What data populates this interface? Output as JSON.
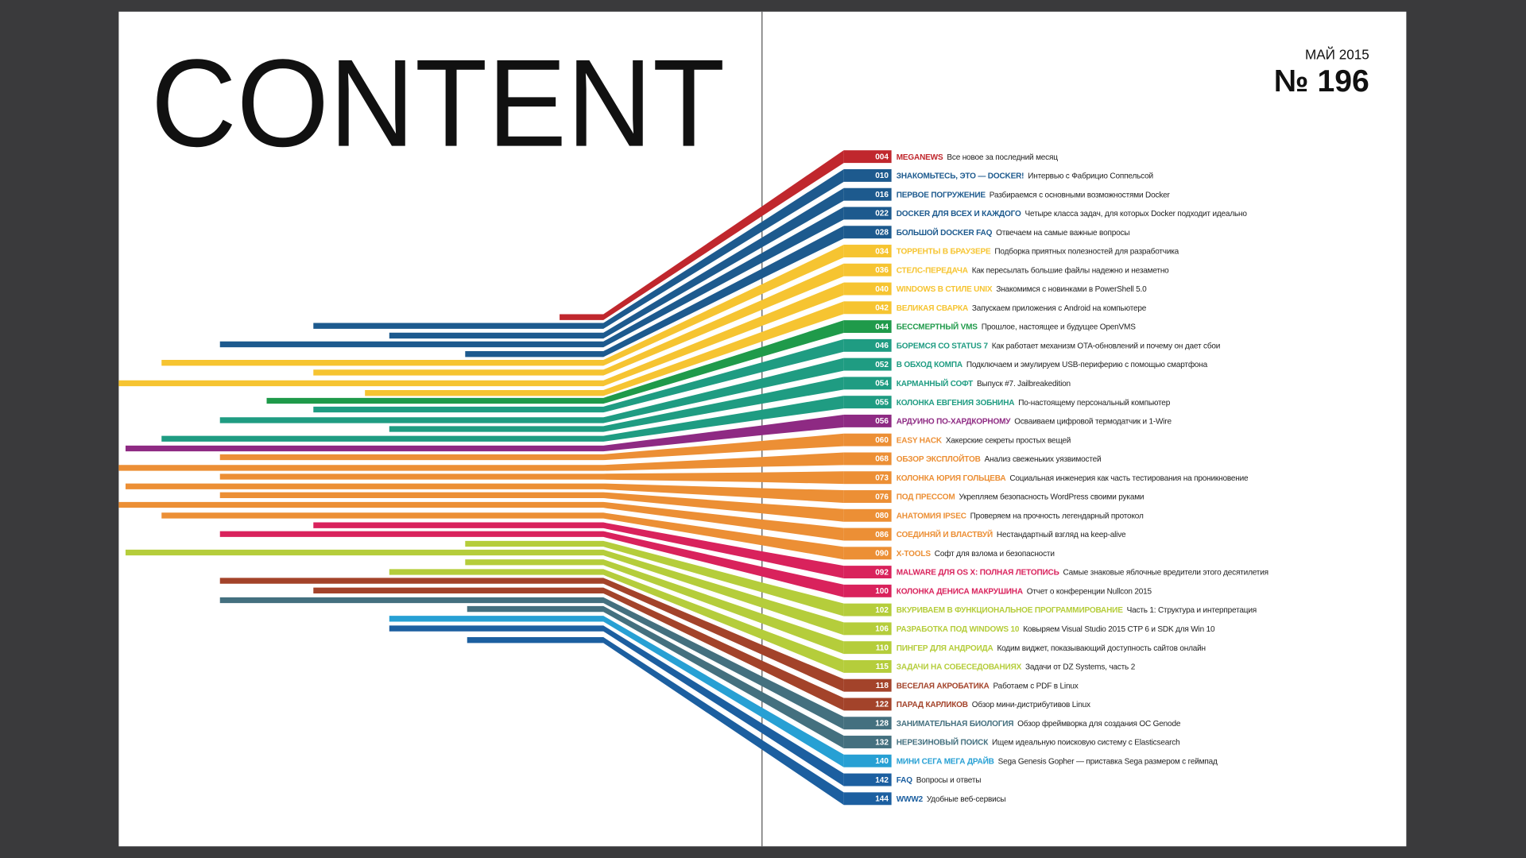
{
  "header": {
    "title": "CONTENT",
    "issue_date": "МАЙ 2015",
    "issue_number": "№ 196"
  },
  "entries": [
    {
      "page": "004",
      "title": "MEGANEWS",
      "description": "Все новое за последний месяц",
      "color": "#c0272d"
    },
    {
      "page": "010",
      "title": "ЗНАКОМЬТЕСЬ, ЭТО — DOCKER!",
      "description": "Интервью с Фабрицио Соппельсой",
      "color": "#1d5a8e"
    },
    {
      "page": "016",
      "title": "ПЕРВОЕ ПОГРУЖЕНИЕ",
      "description": "Разбираемся с основными возможностями Docker",
      "color": "#1d5a8e"
    },
    {
      "page": "022",
      "title": "DOCKER ДЛЯ ВСЕХ И КАЖДОГО",
      "description": "Четыре класса задач, для которых Docker подходит идеально",
      "color": "#1d5a8e"
    },
    {
      "page": "028",
      "title": "БОЛЬШОЙ DOCKER FAQ",
      "description": "Отвечаем на самые важные вопросы",
      "color": "#1d5a8e"
    },
    {
      "page": "034",
      "title": "ТОРРЕНТЫ В БРАУЗЕРЕ",
      "description": "Подборка приятных полезностей для разработчика",
      "color": "#f6c431"
    },
    {
      "page": "036",
      "title": "СТЕЛС-ПЕРЕДАЧА",
      "description": "Как пересылать большие файлы надежно и незаметно",
      "color": "#f6c431"
    },
    {
      "page": "040",
      "title": "WINDOWS В СТИЛЕ UNIX",
      "description": "Знакомимся с новинками в PowerShell 5.0",
      "color": "#f6c431"
    },
    {
      "page": "042",
      "title": "ВЕЛИКАЯ СВАРКА",
      "description": "Запускаем приложения с Android на компьютере",
      "color": "#f6c431"
    },
    {
      "page": "044",
      "title": "БЕССМЕРТНЫЙ VMS",
      "description": "Прошлое, настоящее и будущее OpenVMS",
      "color": "#1f9a4a"
    },
    {
      "page": "046",
      "title": "БОРЕМСЯ СО STATUS 7",
      "description": "Как работает механизм OTA-обновлений и почему он дает сбои",
      "color": "#1f9c82"
    },
    {
      "page": "052",
      "title": "В ОБХОД КОМПА",
      "description": "Подключаем и эмулируем USB-периферию с помощью смартфона",
      "color": "#1f9c82"
    },
    {
      "page": "054",
      "title": "КАРМАННЫЙ СОФТ",
      "description": "Выпуск #7. Jailbreakedition",
      "color": "#1f9c82"
    },
    {
      "page": "055",
      "title": "КОЛОНКА ЕВГЕНИЯ ЗОБНИНА",
      "description": "По-настоящему персональный компьютер",
      "color": "#1f9c82"
    },
    {
      "page": "056",
      "title": "АРДУИНО ПО-ХАРДКОРНОМУ",
      "description": "Осваиваем цифровой термодатчик и 1-Wire",
      "color": "#8e2a83"
    },
    {
      "page": "060",
      "title": "EASY HACK",
      "description": "Хакерские секреты простых вещей",
      "color": "#ec8f35"
    },
    {
      "page": "068",
      "title": "ОБЗОР ЭКСПЛОЙТОВ",
      "description": "Анализ свеженьких уязвимостей",
      "color": "#ec8f35"
    },
    {
      "page": "073",
      "title": "КОЛОНКА ЮРИЯ ГОЛЬЦЕВА",
      "description": "Социальная инженерия как часть тестирования на проникновение",
      "color": "#ec8f35"
    },
    {
      "page": "076",
      "title": "ПОД ПРЕССОМ",
      "description": "Укрепляем безопасность WordPress своими руками",
      "color": "#ec8f35"
    },
    {
      "page": "080",
      "title": "АНАТОМИЯ IPSEC",
      "description": "Проверяем на прочность легендарный протокол",
      "color": "#ec8f35"
    },
    {
      "page": "086",
      "title": "СОЕДИНЯЙ И ВЛАСТВУЙ",
      "description": "Нестандартный взгляд на keep-alive",
      "color": "#ec8f35"
    },
    {
      "page": "090",
      "title": "X-TOOLS",
      "description": "Софт для взлома и безопасности",
      "color": "#ec8f35"
    },
    {
      "page": "092",
      "title": "MALWARE ДЛЯ OS X: ПОЛНАЯ ЛЕТОПИСЬ",
      "description": "Самые знаковые яблочные вредители этого десятилетия",
      "color": "#d9225c"
    },
    {
      "page": "100",
      "title": "КОЛОНКА ДЕНИСА МАКРУШИНА",
      "description": "Отчет о конференции Nullcon 2015",
      "color": "#d9225c"
    },
    {
      "page": "102",
      "title": "ВКУРИВАЕМ В ФУНКЦИОНАЛЬНОЕ ПРОГРАММИРОВАНИЕ",
      "description": "Часть 1: Структура и интерпретация",
      "color": "#b5cd3b"
    },
    {
      "page": "106",
      "title": "РАЗРАБОТКА ПОД WINDOWS 10",
      "description": "Ковыряем Visual Studio 2015 CTP 6 и SDK для Win 10",
      "color": "#b5cd3b"
    },
    {
      "page": "110",
      "title": "ПИНГЕР ДЛЯ АНДРОИДА",
      "description": "Кодим виджет, показывающий доступность сайтов онлайн",
      "color": "#b5cd3b"
    },
    {
      "page": "115",
      "title": "ЗАДАЧИ НА СОБЕСЕДОВАНИЯХ",
      "description": "Задачи от DZ Systems, часть 2",
      "color": "#b5cd3b"
    },
    {
      "page": "118",
      "title": "ВЕСЕЛАЯ АКРОБАТИКА",
      "description": "Работаем с PDF в Linux",
      "color": "#a3432a"
    },
    {
      "page": "122",
      "title": "ПАРАД КАРЛИКОВ",
      "description": "Обзор мини-дистрибутивов Linux",
      "color": "#a3432a"
    },
    {
      "page": "128",
      "title": "ЗАНИМАТЕЛЬНАЯ БИОЛОГИЯ",
      "description": "Обзор фреймворка для создания ОС Genode",
      "color": "#44707f"
    },
    {
      "page": "132",
      "title": "НЕРЕЗИНОВЫЙ ПОИСК",
      "description": "Ищем идеальную поисковую систему с Elasticsearch",
      "color": "#44707f"
    },
    {
      "page": "140",
      "title": "МИНИ СЕГА МЕГА ДРАЙВ",
      "description": "Sega Genesis Gopher — приставка Sega размером с геймпад",
      "color": "#27a0d4"
    },
    {
      "page": "142",
      "title": "FAQ",
      "description": "Вопросы и ответы",
      "color": "#1c5fa0"
    },
    {
      "page": "144",
      "title": "WWW2",
      "description": "Удобные веб-сервисы",
      "color": "#1c5fa0"
    }
  ]
}
